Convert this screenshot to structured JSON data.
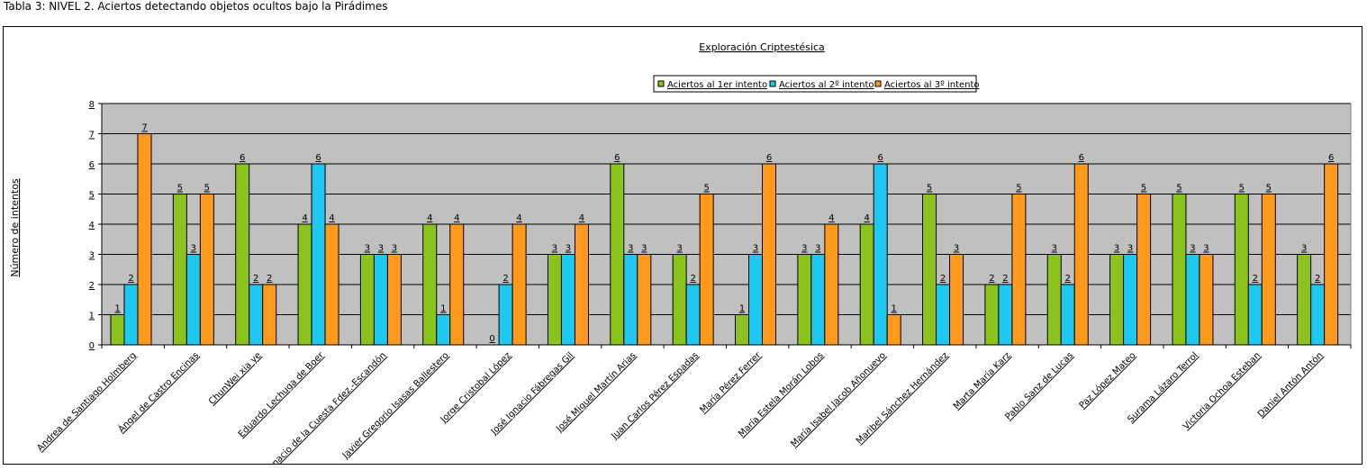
{
  "page_title": "Tabla 3: NIVEL 2. Aciertos detectando objetos ocultos bajo la Pirádimes",
  "chart_data": {
    "type": "bar",
    "title": "Exploración Criptestésica",
    "xlabel": "",
    "ylabel": "Número de intentos",
    "ylim": [
      0,
      8
    ],
    "yticks": [
      "0",
      "1",
      "2",
      "3",
      "4",
      "5",
      "6",
      "7",
      "8"
    ],
    "grid": true,
    "legend_position": "top-right",
    "categories": [
      "Andrea de Santiago Holmberg",
      "Ángel de Castro Encinas",
      "ChunWei xia ye",
      "Eduardo Lechuga de Boer",
      "Ignacio de la Cuesta Fdez.-Escandón",
      "Javier Gregorio Isasas Ballestero",
      "Jorge Cristobal López",
      "José Ignacio Fábregas Gil",
      "José Miguel Martín Arias",
      "Juan Carlos Pérez Espadas",
      "María Pérez Ferrer",
      "María Estela Morán Lobos",
      "María Isabel Jacob Añonuevo",
      "Maribel Sánchez Hernández",
      "Marta María Karz",
      "Pablo Sanz de Lucas",
      "Paz López Mateo",
      "Surama Lázaro Terrol",
      "Victoria Ochoa Esteban",
      "Daniel Antón Antón"
    ],
    "series": [
      {
        "name": "Aciertos al 1er intento",
        "color": "#8CC21E",
        "values": [
          1,
          5,
          6,
          4,
          3,
          4,
          0,
          3,
          6,
          3,
          1,
          3,
          4,
          5,
          2,
          3,
          3,
          5,
          5,
          3
        ]
      },
      {
        "name": "Aciertos al 2º intento",
        "color": "#1EC8F0",
        "values": [
          2,
          3,
          2,
          6,
          3,
          1,
          2,
          3,
          3,
          2,
          3,
          3,
          6,
          2,
          2,
          2,
          3,
          3,
          2,
          2
        ]
      },
      {
        "name": "Aciertos al 3º intento",
        "color": "#FF9A1E",
        "values": [
          7,
          5,
          2,
          4,
          3,
          4,
          4,
          4,
          3,
          5,
          6,
          4,
          1,
          3,
          5,
          6,
          5,
          3,
          5,
          6
        ]
      }
    ]
  }
}
